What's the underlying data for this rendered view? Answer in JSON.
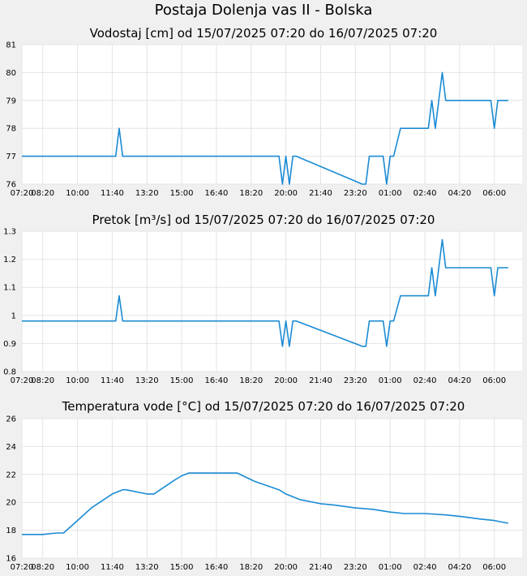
{
  "page": {
    "title": "Postaja Dolenja vas II - Bolska"
  },
  "chart_data": [
    {
      "type": "line",
      "title": "Vodostaj [cm] od 15/07/2025 07:20 do 16/07/2025 07:20",
      "xlabel": "",
      "ylabel": "",
      "ylim": [
        76,
        81
      ],
      "y_ticks": [
        "76",
        "77",
        "78",
        "79",
        "80",
        "81"
      ],
      "x_ticks": [
        "08:20",
        "10:00",
        "11:40",
        "13:20",
        "15:00",
        "16:40",
        "18:20",
        "20:00",
        "21:40",
        "23:20",
        "01:00",
        "02:40",
        "04:20",
        "06:00",
        "07:20"
      ],
      "grid": true,
      "color": "#1b8bd4",
      "series": [
        {
          "x": [
            "07:20",
            "11:50",
            "12:00",
            "12:10",
            "19:40",
            "19:50",
            "20:00",
            "20:10",
            "20:20",
            "20:30",
            "23:40",
            "23:50",
            "00:00",
            "00:10",
            "00:40",
            "00:50",
            "01:00",
            "01:10",
            "01:30",
            "02:50",
            "03:00",
            "03:10",
            "03:20",
            "03:30",
            "03:40",
            "05:50",
            "06:00",
            "06:10",
            "06:20",
            "06:40"
          ],
          "values": [
            77,
            77,
            78,
            77,
            77,
            76,
            77,
            76,
            77,
            77,
            76,
            76,
            77,
            77,
            77,
            76,
            77,
            77,
            78,
            78,
            79,
            78,
            79,
            80,
            79,
            79,
            78,
            79,
            79,
            79
          ]
        }
      ]
    },
    {
      "type": "line",
      "title": "Pretok [m³/s] od 15/07/2025 07:20 do 16/07/2025 07:20",
      "xlabel": "",
      "ylabel": "",
      "ylim": [
        0.8,
        1.3
      ],
      "y_ticks": [
        "0.8",
        "0.9",
        "1",
        "1.1",
        "1.2",
        "1.3"
      ],
      "x_ticks": [
        "08:20",
        "10:00",
        "11:40",
        "13:20",
        "15:00",
        "16:40",
        "18:20",
        "20:00",
        "21:40",
        "23:20",
        "01:00",
        "02:40",
        "04:20",
        "06:00",
        "07:20"
      ],
      "grid": true,
      "color": "#1b8bd4",
      "series": [
        {
          "x": [
            "07:20",
            "11:50",
            "12:00",
            "12:10",
            "19:40",
            "19:50",
            "20:00",
            "20:10",
            "20:20",
            "20:30",
            "23:40",
            "23:50",
            "00:00",
            "00:10",
            "00:40",
            "00:50",
            "01:00",
            "01:10",
            "01:30",
            "02:50",
            "03:00",
            "03:10",
            "03:20",
            "03:30",
            "03:40",
            "05:50",
            "06:00",
            "06:10",
            "06:20",
            "06:40"
          ],
          "values": [
            0.98,
            0.98,
            1.07,
            0.98,
            0.98,
            0.89,
            0.98,
            0.89,
            0.98,
            0.98,
            0.89,
            0.89,
            0.98,
            0.98,
            0.98,
            0.89,
            0.98,
            0.98,
            1.07,
            1.07,
            1.17,
            1.07,
            1.17,
            1.27,
            1.17,
            1.17,
            1.07,
            1.17,
            1.17,
            1.17
          ]
        }
      ]
    },
    {
      "type": "line",
      "title": "Temperatura vode [°C] od 15/07/2025 07:20 do 16/07/2025 07:20",
      "xlabel": "",
      "ylabel": "",
      "ylim": [
        16,
        26
      ],
      "y_ticks": [
        "16",
        "18",
        "20",
        "22",
        "24",
        "26"
      ],
      "x_ticks": [
        "08:20",
        "10:00",
        "11:40",
        "13:20",
        "15:00",
        "16:40",
        "18:20",
        "20:00",
        "21:40",
        "23:20",
        "01:00",
        "02:40",
        "04:20",
        "06:00",
        "07:20"
      ],
      "grid": true,
      "color": "#1b8bd4",
      "series": [
        {
          "x": [
            "07:20",
            "08:20",
            "09:00",
            "09:20",
            "10:00",
            "10:40",
            "11:40",
            "12:10",
            "12:20",
            "13:20",
            "13:40",
            "14:40",
            "15:00",
            "15:20",
            "17:40",
            "18:30",
            "19:40",
            "20:00",
            "20:40",
            "21:40",
            "22:20",
            "23:20",
            "00:10",
            "01:00",
            "01:40",
            "02:40",
            "03:40",
            "04:20",
            "05:20",
            "06:00",
            "06:40"
          ],
          "values": [
            17.7,
            17.7,
            17.8,
            17.8,
            18.7,
            19.6,
            20.6,
            20.9,
            20.9,
            20.6,
            20.6,
            21.6,
            21.9,
            22.1,
            22.1,
            21.5,
            20.9,
            20.6,
            20.2,
            19.9,
            19.8,
            19.6,
            19.5,
            19.3,
            19.2,
            19.2,
            19.1,
            19.0,
            18.8,
            18.7,
            18.5
          ]
        }
      ]
    }
  ]
}
